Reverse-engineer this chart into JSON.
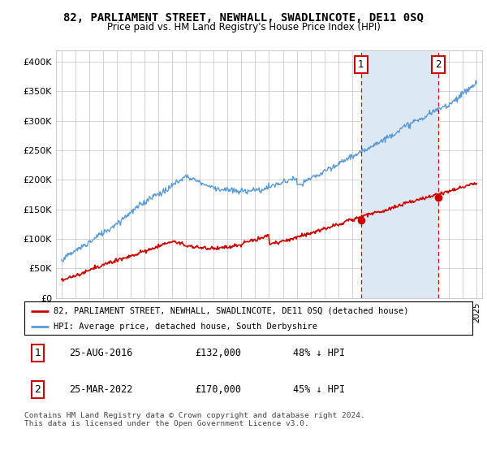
{
  "title": "82, PARLIAMENT STREET, NEWHALL, SWADLINCOTE, DE11 0SQ",
  "subtitle": "Price paid vs. HM Land Registry's House Price Index (HPI)",
  "ylim": [
    0,
    420000
  ],
  "yticks": [
    0,
    50000,
    100000,
    150000,
    200000,
    250000,
    300000,
    350000,
    400000
  ],
  "ytick_labels": [
    "£0",
    "£50K",
    "£100K",
    "£150K",
    "£200K",
    "£250K",
    "£300K",
    "£350K",
    "£400K"
  ],
  "hpi_color": "#5b9bd5",
  "hpi_fill_color": "#dce9f5",
  "price_color": "#cc0000",
  "marker1_date": 2016.65,
  "marker1_price": 132000,
  "marker1_label": "1",
  "marker2_date": 2022.23,
  "marker2_price": 170000,
  "marker2_label": "2",
  "legend_property": "82, PARLIAMENT STREET, NEWHALL, SWADLINCOTE, DE11 0SQ (detached house)",
  "legend_hpi": "HPI: Average price, detached house, South Derbyshire",
  "table_rows": [
    {
      "num": "1",
      "date": "25-AUG-2016",
      "price": "£132,000",
      "note": "48% ↓ HPI"
    },
    {
      "num": "2",
      "date": "25-MAR-2022",
      "price": "£170,000",
      "note": "45% ↓ HPI"
    }
  ],
  "footer": "Contains HM Land Registry data © Crown copyright and database right 2024.\nThis data is licensed under the Open Government Licence v3.0.",
  "background_color": "#ffffff",
  "grid_color": "#cccccc"
}
